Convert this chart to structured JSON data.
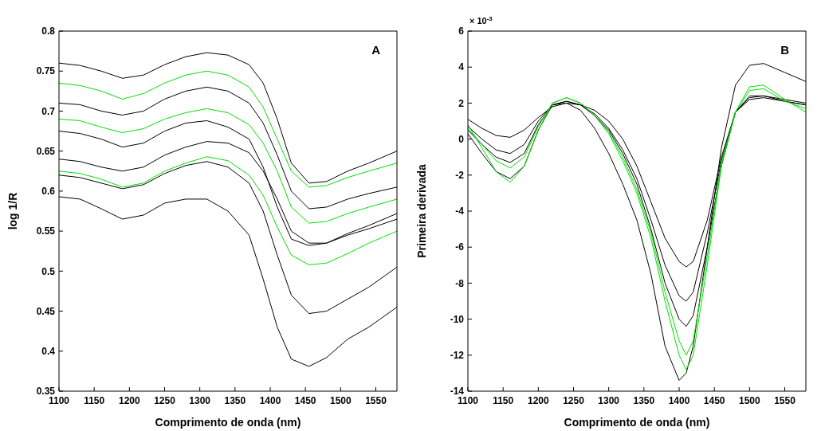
{
  "chart_data": [
    {
      "type": "line",
      "xlabel": "Comprimento de onda (nm)",
      "ylabel": "log 1/R",
      "annotations": [
        "A"
      ],
      "x": [
        1100,
        1130,
        1160,
        1190,
        1220,
        1250,
        1280,
        1310,
        1340,
        1370,
        1390,
        1410,
        1430,
        1455,
        1480,
        1510,
        1540,
        1580
      ],
      "xlim": [
        1100,
        1580
      ],
      "xticks": [
        1100,
        1150,
        1200,
        1250,
        1300,
        1350,
        1400,
        1450,
        1500,
        1550
      ],
      "ylim": [
        0.35,
        0.8
      ],
      "yticks": [
        0.35,
        0.4,
        0.45,
        0.5,
        0.55,
        0.6,
        0.65,
        0.7,
        0.75,
        0.8
      ],
      "series": [
        {
          "color": "#000000",
          "values": [
            0.76,
            0.757,
            0.75,
            0.741,
            0.745,
            0.758,
            0.768,
            0.773,
            0.77,
            0.758,
            0.735,
            0.69,
            0.635,
            0.61,
            0.612,
            0.625,
            0.635,
            0.65
          ]
        },
        {
          "color": "#00e000",
          "values": [
            0.735,
            0.732,
            0.725,
            0.715,
            0.722,
            0.735,
            0.745,
            0.75,
            0.745,
            0.73,
            0.705,
            0.665,
            0.625,
            0.605,
            0.607,
            0.617,
            0.625,
            0.635
          ]
        },
        {
          "color": "#000000",
          "values": [
            0.71,
            0.708,
            0.7,
            0.695,
            0.7,
            0.715,
            0.725,
            0.73,
            0.725,
            0.71,
            0.685,
            0.645,
            0.6,
            0.578,
            0.58,
            0.59,
            0.597,
            0.605
          ]
        },
        {
          "color": "#00e000",
          "values": [
            0.69,
            0.688,
            0.68,
            0.673,
            0.678,
            0.69,
            0.698,
            0.703,
            0.698,
            0.683,
            0.66,
            0.625,
            0.58,
            0.56,
            0.562,
            0.572,
            0.58,
            0.59
          ]
        },
        {
          "color": "#000000",
          "values": [
            0.675,
            0.672,
            0.665,
            0.655,
            0.66,
            0.675,
            0.685,
            0.688,
            0.68,
            0.665,
            0.63,
            0.58,
            0.54,
            0.532,
            0.535,
            0.547,
            0.557,
            0.572
          ]
        },
        {
          "color": "#000000",
          "values": [
            0.64,
            0.637,
            0.63,
            0.625,
            0.63,
            0.645,
            0.655,
            0.662,
            0.66,
            0.648,
            0.625,
            0.59,
            0.55,
            0.535,
            0.535,
            0.545,
            0.553,
            0.565
          ]
        },
        {
          "color": "#00e000",
          "values": [
            0.625,
            0.622,
            0.615,
            0.605,
            0.61,
            0.625,
            0.635,
            0.643,
            0.638,
            0.62,
            0.595,
            0.555,
            0.52,
            0.508,
            0.51,
            0.522,
            0.535,
            0.55
          ]
        },
        {
          "color": "#000000",
          "values": [
            0.62,
            0.617,
            0.61,
            0.603,
            0.608,
            0.622,
            0.632,
            0.637,
            0.63,
            0.61,
            0.575,
            0.52,
            0.47,
            0.447,
            0.45,
            0.465,
            0.48,
            0.505
          ]
        },
        {
          "color": "#000000",
          "values": [
            0.593,
            0.59,
            0.578,
            0.565,
            0.57,
            0.585,
            0.59,
            0.59,
            0.575,
            0.545,
            0.49,
            0.43,
            0.39,
            0.381,
            0.392,
            0.415,
            0.43,
            0.455
          ]
        }
      ]
    },
    {
      "type": "line",
      "xlabel": "Comprimento de onda (nm)",
      "ylabel": "Primeira derivada",
      "annotations": [
        "B",
        "× 10$^{-3}$"
      ],
      "x": [
        1100,
        1120,
        1140,
        1160,
        1180,
        1200,
        1220,
        1240,
        1260,
        1280,
        1300,
        1320,
        1340,
        1360,
        1380,
        1400,
        1410,
        1420,
        1440,
        1460,
        1480,
        1500,
        1520,
        1550,
        1580
      ],
      "xlim": [
        1100,
        1580
      ],
      "xticks": [
        1100,
        1150,
        1200,
        1250,
        1300,
        1350,
        1400,
        1450,
        1500,
        1550
      ],
      "ylim": [
        -14,
        6
      ],
      "yticks": [
        -14,
        -12,
        -10,
        -8,
        -6,
        -4,
        -2,
        0,
        2,
        4,
        6
      ],
      "series": [
        {
          "color": "#000000",
          "values": [
            1.1,
            0.6,
            0.2,
            0.1,
            0.5,
            1.2,
            1.8,
            2.0,
            1.9,
            1.6,
            1.0,
            0.0,
            -1.5,
            -3.5,
            -5.5,
            -6.8,
            -7.1,
            -6.8,
            -4.5,
            -1.0,
            1.5,
            2.2,
            2.3,
            2.1,
            1.9
          ]
        },
        {
          "color": "#000000",
          "values": [
            0.7,
            0.0,
            -0.6,
            -0.8,
            -0.3,
            1.0,
            1.9,
            2.1,
            1.9,
            1.4,
            0.6,
            -0.6,
            -2.2,
            -4.5,
            -7.0,
            -8.7,
            -9.0,
            -8.5,
            -5.2,
            -1.2,
            1.5,
            2.3,
            2.4,
            2.2,
            2.0
          ]
        },
        {
          "color": "#000000",
          "values": [
            0.5,
            -0.3,
            -1.0,
            -1.3,
            -0.8,
            0.8,
            1.9,
            2.1,
            1.9,
            1.3,
            0.5,
            -0.8,
            -2.5,
            -5.0,
            -8.0,
            -10.0,
            -10.4,
            -9.8,
            -6.0,
            -1.5,
            1.5,
            2.4,
            2.4,
            2.1,
            1.9
          ]
        },
        {
          "color": "#000000",
          "values": [
            0.3,
            -0.8,
            -1.8,
            -2.2,
            -1.5,
            0.5,
            1.9,
            2.0,
            1.6,
            0.6,
            -0.8,
            -2.5,
            -4.5,
            -7.5,
            -11.5,
            -13.4,
            -13.0,
            -11.5,
            -6.0,
            -0.5,
            3.0,
            4.1,
            4.2,
            3.7,
            3.2
          ]
        },
        {
          "color": "#00e000",
          "values": [
            0.6,
            -0.3,
            -1.2,
            -1.6,
            -1.0,
            0.7,
            2.0,
            2.3,
            2.0,
            1.3,
            0.4,
            -1.0,
            -2.8,
            -5.2,
            -8.5,
            -11.2,
            -12.0,
            -11.2,
            -6.5,
            -1.3,
            1.5,
            2.7,
            2.8,
            2.1,
            1.7
          ]
        },
        {
          "color": "#00e000",
          "values": [
            0.8,
            -0.5,
            -1.8,
            -2.4,
            -1.5,
            0.5,
            2.0,
            2.3,
            2.0,
            1.3,
            0.3,
            -1.2,
            -3.0,
            -5.5,
            -9.0,
            -12.0,
            -12.8,
            -12.0,
            -7.0,
            -1.5,
            1.5,
            2.9,
            3.0,
            2.2,
            1.5
          ]
        }
      ]
    }
  ]
}
